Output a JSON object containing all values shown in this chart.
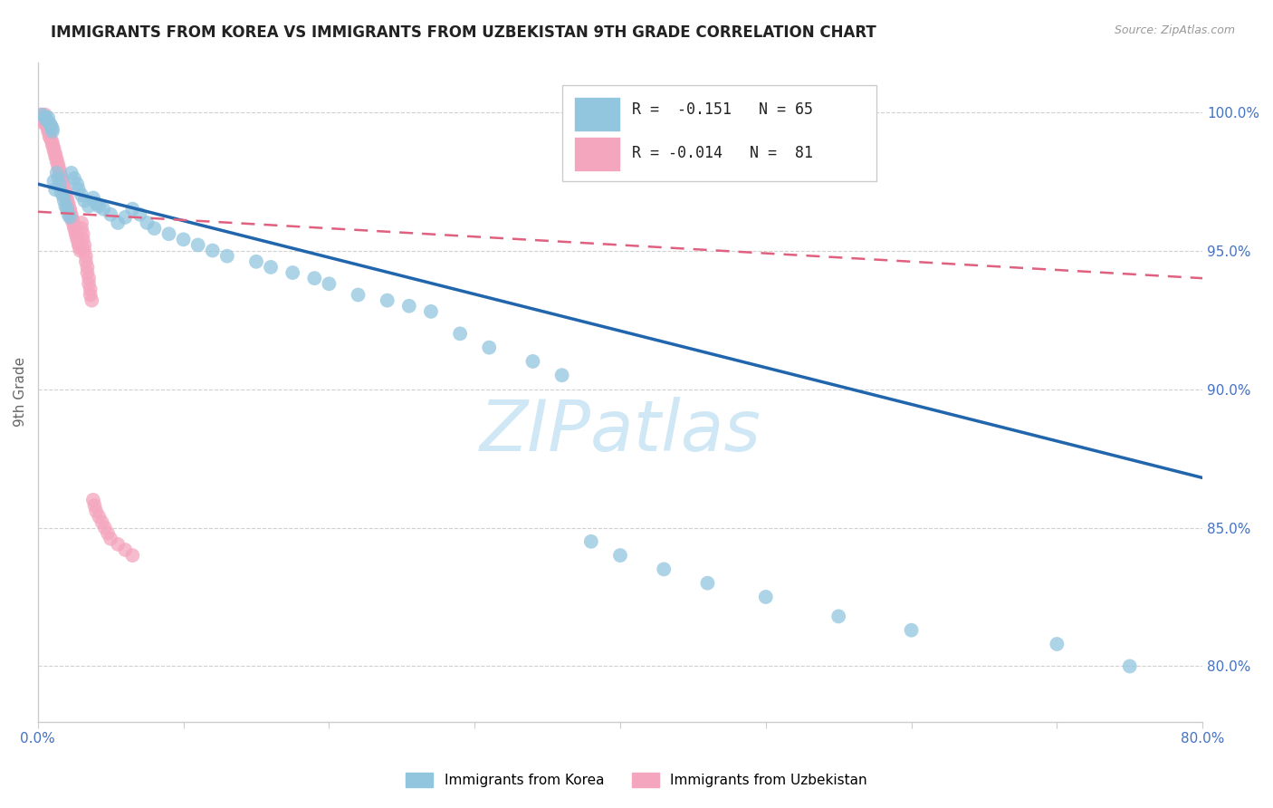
{
  "title": "IMMIGRANTS FROM KOREA VS IMMIGRANTS FROM UZBEKISTAN 9TH GRADE CORRELATION CHART",
  "source": "Source: ZipAtlas.com",
  "ylabel": "9th Grade",
  "xlim": [
    0.0,
    0.8
  ],
  "ylim": [
    0.78,
    1.018
  ],
  "korea_color": "#92c5de",
  "uzbekistan_color": "#f4a6be",
  "korea_line_color": "#2166ac",
  "uzbekistan_line_color": "#e06080",
  "background_color": "#ffffff",
  "grid_color": "#d0d0d0",
  "tick_color": "#4472c4",
  "ylabel_color": "#666666",
  "title_color": "#222222",
  "source_color": "#999999",
  "watermark_color": "#d0e8f5",
  "x_tick_positions": [
    0.0,
    0.1,
    0.2,
    0.3,
    0.4,
    0.5,
    0.6,
    0.7,
    0.8
  ],
  "x_tick_labels": [
    "0.0%",
    "",
    "",
    "",
    "",
    "",
    "",
    "",
    "80.0%"
  ],
  "y_tick_positions": [
    0.8,
    0.85,
    0.9,
    0.95,
    1.0
  ],
  "y_tick_labels": [
    "80.0%",
    "85.0%",
    "90.0%",
    "95.0%",
    "100.0%"
  ],
  "korea_trendline": [
    0.0,
    0.8,
    0.974,
    0.868
  ],
  "uzbek_trendline": [
    0.0,
    0.8,
    0.964,
    0.94
  ],
  "legend_korea_text": "R =  -0.151   N = 65",
  "legend_uzbek_text": "R = -0.014   N =  81",
  "korea_scatter_x": [
    0.003,
    0.005,
    0.006,
    0.007,
    0.008,
    0.009,
    0.01,
    0.01,
    0.011,
    0.012,
    0.013,
    0.014,
    0.015,
    0.016,
    0.017,
    0.018,
    0.019,
    0.02,
    0.021,
    0.022,
    0.023,
    0.025,
    0.027,
    0.028,
    0.03,
    0.032,
    0.035,
    0.038,
    0.04,
    0.042,
    0.045,
    0.05,
    0.055,
    0.06,
    0.065,
    0.07,
    0.075,
    0.08,
    0.09,
    0.1,
    0.11,
    0.12,
    0.13,
    0.15,
    0.16,
    0.175,
    0.19,
    0.2,
    0.22,
    0.24,
    0.255,
    0.27,
    0.29,
    0.31,
    0.34,
    0.36,
    0.38,
    0.4,
    0.43,
    0.46,
    0.5,
    0.55,
    0.6,
    0.7,
    0.75
  ],
  "korea_scatter_y": [
    0.999,
    0.998,
    0.997,
    0.998,
    0.996,
    0.995,
    0.994,
    0.993,
    0.975,
    0.972,
    0.978,
    0.976,
    0.974,
    0.971,
    0.97,
    0.968,
    0.966,
    0.965,
    0.963,
    0.962,
    0.978,
    0.976,
    0.974,
    0.972,
    0.97,
    0.968,
    0.966,
    0.969,
    0.967,
    0.966,
    0.965,
    0.963,
    0.96,
    0.962,
    0.965,
    0.963,
    0.96,
    0.958,
    0.956,
    0.954,
    0.952,
    0.95,
    0.948,
    0.946,
    0.944,
    0.942,
    0.94,
    0.938,
    0.934,
    0.932,
    0.93,
    0.928,
    0.92,
    0.915,
    0.91,
    0.905,
    0.845,
    0.84,
    0.835,
    0.83,
    0.825,
    0.818,
    0.813,
    0.808,
    0.8
  ],
  "uzbek_scatter_x": [
    0.002,
    0.003,
    0.003,
    0.004,
    0.004,
    0.005,
    0.005,
    0.006,
    0.006,
    0.007,
    0.007,
    0.008,
    0.008,
    0.009,
    0.009,
    0.01,
    0.01,
    0.011,
    0.011,
    0.012,
    0.012,
    0.013,
    0.013,
    0.014,
    0.014,
    0.015,
    0.015,
    0.016,
    0.016,
    0.017,
    0.017,
    0.018,
    0.018,
    0.019,
    0.019,
    0.02,
    0.02,
    0.021,
    0.021,
    0.022,
    0.022,
    0.023,
    0.023,
    0.024,
    0.024,
    0.025,
    0.025,
    0.026,
    0.026,
    0.027,
    0.027,
    0.028,
    0.028,
    0.029,
    0.029,
    0.03,
    0.03,
    0.031,
    0.031,
    0.032,
    0.032,
    0.033,
    0.033,
    0.034,
    0.034,
    0.035,
    0.035,
    0.036,
    0.036,
    0.037,
    0.038,
    0.039,
    0.04,
    0.042,
    0.044,
    0.046,
    0.048,
    0.05,
    0.055,
    0.06,
    0.065
  ],
  "uzbek_scatter_y": [
    0.999,
    0.998,
    0.997,
    0.998,
    0.996,
    0.999,
    0.997,
    0.995,
    0.996,
    0.994,
    0.993,
    0.992,
    0.991,
    0.99,
    0.995,
    0.989,
    0.988,
    0.987,
    0.986,
    0.985,
    0.984,
    0.983,
    0.982,
    0.981,
    0.98,
    0.979,
    0.978,
    0.977,
    0.976,
    0.975,
    0.974,
    0.973,
    0.972,
    0.971,
    0.97,
    0.969,
    0.968,
    0.967,
    0.966,
    0.965,
    0.964,
    0.963,
    0.962,
    0.961,
    0.96,
    0.959,
    0.958,
    0.957,
    0.956,
    0.955,
    0.954,
    0.953,
    0.952,
    0.951,
    0.95,
    0.96,
    0.958,
    0.956,
    0.954,
    0.952,
    0.95,
    0.948,
    0.946,
    0.944,
    0.942,
    0.94,
    0.938,
    0.936,
    0.934,
    0.932,
    0.86,
    0.858,
    0.856,
    0.854,
    0.852,
    0.85,
    0.848,
    0.846,
    0.844,
    0.842,
    0.84
  ]
}
